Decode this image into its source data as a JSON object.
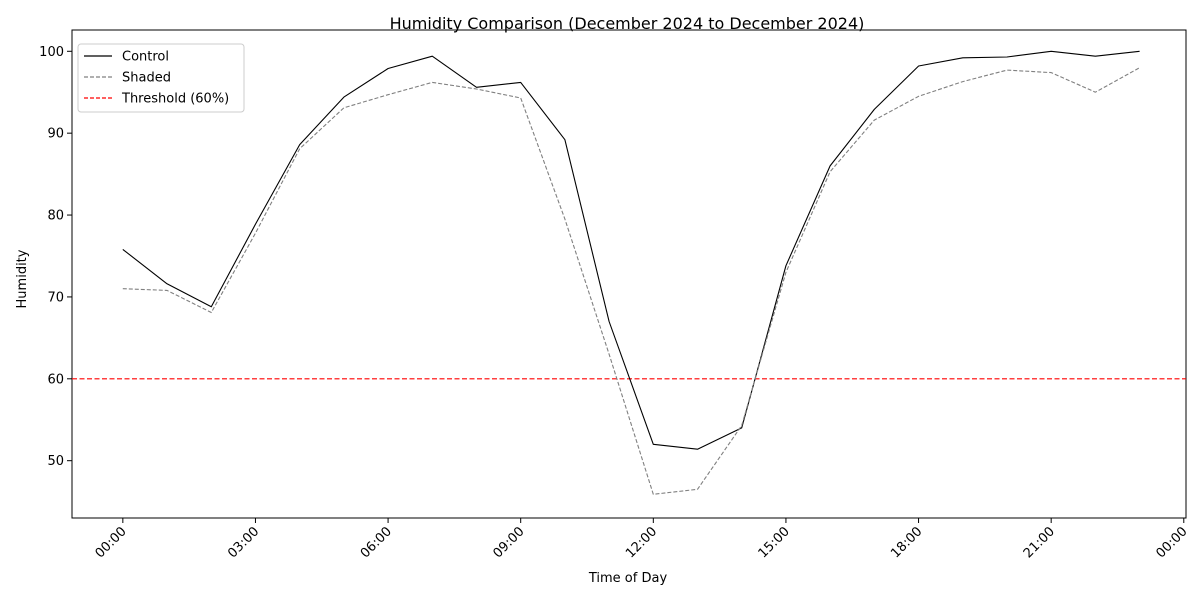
{
  "chart_data": {
    "type": "line",
    "title": "Humidity Comparison (December 2024 to December 2024)",
    "xlabel": "Time of Day",
    "ylabel": "Humidity",
    "x_unit": "hour of day",
    "x": [
      0,
      1,
      2,
      3,
      4,
      5,
      6,
      7,
      8,
      9,
      10,
      11,
      12,
      13,
      14,
      15,
      16,
      17,
      18,
      19,
      20,
      21,
      22,
      23
    ],
    "xlim": [
      -1.15,
      24.05
    ],
    "ylim": [
      43.0,
      102.6
    ],
    "x_ticks": [
      0,
      3,
      6,
      9,
      12,
      15,
      18,
      21,
      24
    ],
    "x_tick_labels": [
      "00:00",
      "03:00",
      "06:00",
      "09:00",
      "12:00",
      "15:00",
      "18:00",
      "21:00",
      "00:00"
    ],
    "y_ticks": [
      50,
      60,
      70,
      80,
      90,
      100
    ],
    "y_tick_labels": [
      "50",
      "60",
      "70",
      "80",
      "90",
      "100"
    ],
    "grid": false,
    "legend_position": "top-left",
    "series": [
      {
        "name": "Control",
        "color": "#000000",
        "style": "solid",
        "values": [
          75.8,
          71.6,
          68.8,
          78.9,
          88.6,
          94.4,
          97.9,
          99.4,
          95.6,
          96.2,
          89.2,
          67.0,
          52.0,
          51.4,
          54.0,
          73.8,
          86.0,
          92.9,
          98.2,
          99.2,
          99.3,
          100.0,
          99.4,
          100.0
        ]
      },
      {
        "name": "Shaded",
        "color": "#808080",
        "style": "dashed",
        "values": [
          71.0,
          70.8,
          68.1,
          77.8,
          88.1,
          93.1,
          94.7,
          96.2,
          95.4,
          94.3,
          79.5,
          63.0,
          45.9,
          46.5,
          54.3,
          73.0,
          85.3,
          91.6,
          94.5,
          96.3,
          97.7,
          97.4,
          95.0,
          98.0
        ]
      }
    ],
    "threshold": {
      "name": "Threshold (60%)",
      "value": 60,
      "color": "#ff0000",
      "style": "dashed"
    }
  }
}
